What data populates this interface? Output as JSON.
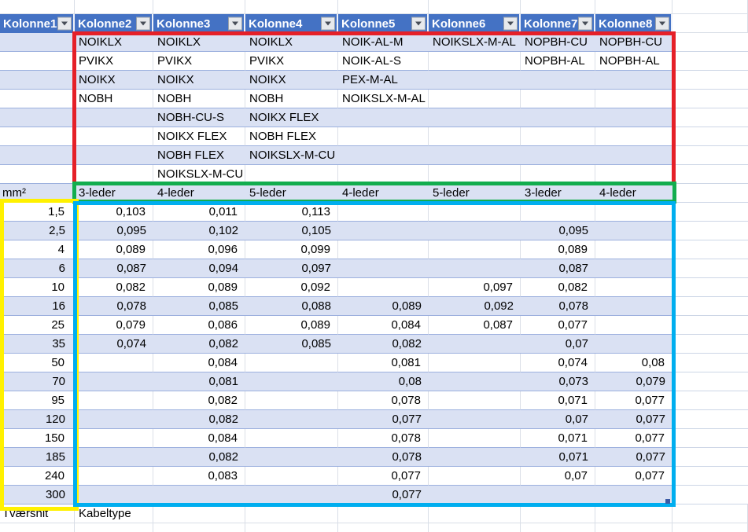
{
  "table": {
    "headers": [
      "Kolonne1",
      "Kolonne2",
      "Kolonne3",
      "Kolonne4",
      "Kolonne5",
      "Kolonne6",
      "Kolonne7",
      "Kolonne8"
    ],
    "cable_rows": [
      [
        "NOIKLX",
        "NOIKLX",
        "NOIKLX",
        "NOIK-AL-M",
        "NOIKSLX-M-AL",
        "NOPBH-CU",
        "NOPBH-CU"
      ],
      [
        "PVIKX",
        "PVIKX",
        "PVIKX",
        "NOIK-AL-S",
        "",
        "NOPBH-AL",
        "NOPBH-AL"
      ],
      [
        "NOIKX",
        "NOIKX",
        "NOIKX",
        "PEX-M-AL",
        "",
        "",
        ""
      ],
      [
        "NOBH",
        "NOBH",
        "NOBH",
        "NOIKSLX-M-AL",
        "",
        "",
        ""
      ],
      [
        "",
        "NOBH-CU-S",
        "NOIKX FLEX",
        "",
        "",
        "",
        ""
      ],
      [
        "",
        "NOIKX FLEX",
        "NOBH FLEX",
        "",
        "",
        "",
        ""
      ],
      [
        "",
        "NOBH FLEX",
        "NOIKSLX-M-CU",
        "",
        "",
        "",
        ""
      ],
      [
        "",
        "NOIKSLX-M-CU",
        "",
        "",
        "",
        "",
        ""
      ]
    ],
    "unit_label": "mm²",
    "leder_labels": [
      "3-leder",
      "4-leder",
      "5-leder",
      "4-leder",
      "5-leder",
      "3-leder",
      "4-leder"
    ],
    "data_rows": [
      {
        "size": "1,5",
        "values": [
          "0,103",
          "0,011",
          "0,113",
          "",
          "",
          "",
          ""
        ]
      },
      {
        "size": "2,5",
        "values": [
          "0,095",
          "0,102",
          "0,105",
          "",
          "",
          "0,095",
          ""
        ]
      },
      {
        "size": "4",
        "values": [
          "0,089",
          "0,096",
          "0,099",
          "",
          "",
          "0,089",
          ""
        ]
      },
      {
        "size": "6",
        "values": [
          "0,087",
          "0,094",
          "0,097",
          "",
          "",
          "0,087",
          ""
        ]
      },
      {
        "size": "10",
        "values": [
          "0,082",
          "0,089",
          "0,092",
          "",
          "0,097",
          "0,082",
          ""
        ]
      },
      {
        "size": "16",
        "values": [
          "0,078",
          "0,085",
          "0,088",
          "0,089",
          "0,092",
          "0,078",
          ""
        ]
      },
      {
        "size": "25",
        "values": [
          "0,079",
          "0,086",
          "0,089",
          "0,084",
          "0,087",
          "0,077",
          ""
        ]
      },
      {
        "size": "35",
        "values": [
          "0,074",
          "0,082",
          "0,085",
          "0,082",
          "",
          "0,07",
          ""
        ]
      },
      {
        "size": "50",
        "values": [
          "",
          "0,084",
          "",
          "0,081",
          "",
          "0,074",
          "0,08"
        ]
      },
      {
        "size": "70",
        "values": [
          "",
          "0,081",
          "",
          "0,08",
          "",
          "0,073",
          "0,079"
        ]
      },
      {
        "size": "95",
        "values": [
          "",
          "0,082",
          "",
          "0,078",
          "",
          "0,071",
          "0,077"
        ]
      },
      {
        "size": "120",
        "values": [
          "",
          "0,082",
          "",
          "0,077",
          "",
          "0,07",
          "0,077"
        ]
      },
      {
        "size": "150",
        "values": [
          "",
          "0,084",
          "",
          "0,078",
          "",
          "0,071",
          "0,077"
        ]
      },
      {
        "size": "185",
        "values": [
          "",
          "0,082",
          "",
          "0,078",
          "",
          "0,071",
          "0,077"
        ]
      },
      {
        "size": "240",
        "values": [
          "",
          "0,083",
          "",
          "0,077",
          "",
          "0,07",
          "0,077"
        ]
      },
      {
        "size": "300",
        "values": [
          "",
          "",
          "",
          "0,077",
          "",
          "",
          ""
        ]
      }
    ],
    "footer": {
      "col1": "Tværsnit",
      "col2": "Kabeltype"
    }
  },
  "icons": {
    "filter_dropdown": "chevron-down"
  },
  "colors": {
    "header_bg": "#4472C4",
    "band_bg": "#DAE1F3",
    "red_border": "#E52028",
    "green_border": "#12AD4E",
    "yellow_border": "#FFF100",
    "cyan_border": "#00AEEF"
  }
}
